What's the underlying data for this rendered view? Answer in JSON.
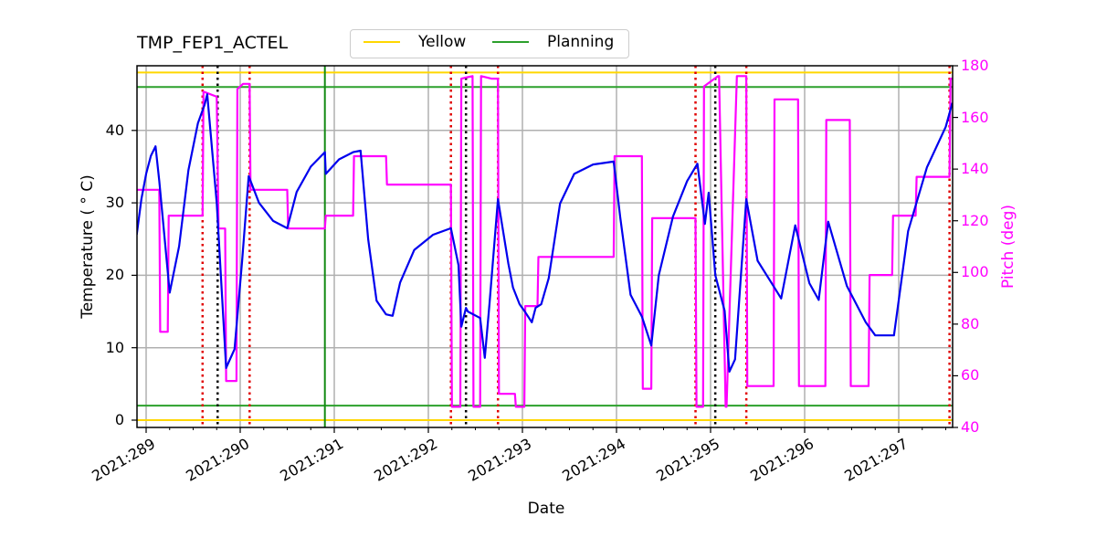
{
  "chart_data": {
    "type": "line",
    "title": "TMP_FEP1_ACTEL",
    "xlabel": "Date",
    "ylabel": "Temperature ($^\\circ$C)",
    "ylabel_display": "Temperature ( ° C)",
    "y2label": "Pitch (deg)",
    "xlim": [
      288.9,
      297.57
    ],
    "ylim": [
      -1,
      49
    ],
    "y2lim": [
      40,
      180
    ],
    "grid": true,
    "legend_position": "top-center (above axes)",
    "x_ticks": [
      "2021:289",
      "2021:290",
      "2021:291",
      "2021:292",
      "2021:293",
      "2021:294",
      "2021:295",
      "2021:296",
      "2021:297"
    ],
    "x_tick_values": [
      289,
      290,
      291,
      292,
      293,
      294,
      295,
      296,
      297
    ],
    "y_ticks": [
      0,
      10,
      20,
      30,
      40
    ],
    "y2_ticks": [
      40,
      60,
      80,
      100,
      120,
      140,
      160,
      180
    ],
    "legend": [
      {
        "label": "Yellow",
        "color": "#ffd700"
      },
      {
        "label": "Planning",
        "color": "#2ca02c"
      }
    ],
    "limit_lines": [
      {
        "name": "Yellow high",
        "value": 48,
        "color": "#ffd700"
      },
      {
        "name": "Planning high",
        "value": 46,
        "color": "#2ca02c"
      },
      {
        "name": "Planning low",
        "value": 2,
        "color": "#2ca02c"
      },
      {
        "name": "Yellow low",
        "value": 0,
        "color": "#ffd700"
      }
    ],
    "vertical_markers": [
      {
        "day": 289.6,
        "style": "red-dotted"
      },
      {
        "day": 289.76,
        "style": "black-dotted"
      },
      {
        "day": 290.1,
        "style": "red-dotted"
      },
      {
        "day": 290.9,
        "style": "green-solid"
      },
      {
        "day": 292.24,
        "style": "red-dotted"
      },
      {
        "day": 292.4,
        "style": "black-dotted"
      },
      {
        "day": 292.74,
        "style": "red-dotted"
      },
      {
        "day": 294.84,
        "style": "red-dotted"
      },
      {
        "day": 295.05,
        "style": "black-dotted"
      },
      {
        "day": 295.38,
        "style": "red-dotted"
      },
      {
        "day": 297.54,
        "style": "red-dotted"
      }
    ],
    "series": [
      {
        "name": "TMP_FEP1_ACTEL",
        "axis": "left",
        "color": "#0000ee",
        "x": [
          288.9,
          288.95,
          289.0,
          289.05,
          289.1,
          289.14,
          289.25,
          289.35,
          289.45,
          289.55,
          289.62,
          289.65,
          289.75,
          289.85,
          289.86,
          289.94,
          290.02,
          290.09,
          290.2,
          290.35,
          290.5,
          290.6,
          290.75,
          290.9,
          290.91,
          291.05,
          291.2,
          291.28,
          291.36,
          291.45,
          291.55,
          291.62,
          291.7,
          291.85,
          292.05,
          292.24,
          292.32,
          292.35,
          292.4,
          292.42,
          292.55,
          292.6,
          292.65,
          292.74,
          292.85,
          292.9,
          292.97,
          293.02,
          293.1,
          293.14,
          293.2,
          293.28,
          293.4,
          293.55,
          293.75,
          293.97,
          294.04,
          294.15,
          294.27,
          294.37,
          294.45,
          294.6,
          294.75,
          294.86,
          294.94,
          294.98,
          295.05,
          295.15,
          295.2,
          295.26,
          295.38,
          295.5,
          295.65,
          295.75,
          295.9,
          296.05,
          296.15,
          296.25,
          296.45,
          296.65,
          296.75,
          296.95,
          297.1,
          297.3,
          297.5,
          297.57
        ],
        "values": [
          25.6,
          30.5,
          34.0,
          36.5,
          37.8,
          33.0,
          17.6,
          24.0,
          34.5,
          41.0,
          43.5,
          45.0,
          30.0,
          7.2,
          7.5,
          9.8,
          22.0,
          33.7,
          30.0,
          27.5,
          26.5,
          31.5,
          35.0,
          37.0,
          34.0,
          36.0,
          37.0,
          37.2,
          25.0,
          16.5,
          14.6,
          14.4,
          19.0,
          23.5,
          25.6,
          26.5,
          21.4,
          12.9,
          15.5,
          15.0,
          14.1,
          8.6,
          16.0,
          30.5,
          21.6,
          18.3,
          16.0,
          15.1,
          13.5,
          15.5,
          16.0,
          19.6,
          29.9,
          34.0,
          35.3,
          35.7,
          28.0,
          17.3,
          14.3,
          10.3,
          20.0,
          28.1,
          33.0,
          35.4,
          27.1,
          31.4,
          20.0,
          15.1,
          6.7,
          8.4,
          30.5,
          22.0,
          18.9,
          16.8,
          26.9,
          18.9,
          16.6,
          27.4,
          18.5,
          13.5,
          11.7,
          11.7,
          26.1,
          34.9,
          40.5,
          43.8
        ]
      },
      {
        "name": "Pitch",
        "axis": "right",
        "color": "#ff00ff",
        "step": true,
        "x": [
          288.9,
          289.14,
          289.15,
          289.23,
          289.24,
          289.6,
          289.61,
          289.75,
          289.77,
          289.84,
          289.85,
          289.96,
          289.97,
          290.03,
          290.04,
          290.1,
          290.11,
          290.5,
          290.51,
          290.9,
          290.91,
          291.2,
          291.21,
          291.55,
          291.56,
          292.24,
          292.25,
          292.34,
          292.35,
          292.47,
          292.48,
          292.55,
          292.56,
          292.67,
          292.68,
          292.74,
          292.75,
          292.92,
          292.93,
          293.02,
          293.03,
          293.16,
          293.17,
          293.97,
          293.98,
          294.27,
          294.28,
          294.37,
          294.38,
          294.84,
          294.85,
          294.92,
          294.93,
          295.08,
          295.09,
          295.16,
          295.17,
          295.28,
          295.29,
          295.38,
          295.39,
          295.67,
          295.68,
          295.93,
          295.94,
          296.22,
          296.23,
          296.48,
          296.49,
          296.68,
          296.69,
          296.93,
          296.94,
          297.18,
          297.19,
          297.54,
          297.55,
          297.57
        ],
        "values": [
          132,
          132,
          77,
          77,
          122,
          122,
          170,
          168,
          117,
          117,
          58,
          58,
          171,
          173,
          173,
          173,
          132,
          132,
          117,
          117,
          122,
          122,
          145,
          145,
          134,
          134,
          48,
          48,
          175,
          176,
          48,
          48,
          176,
          175,
          175,
          175,
          53,
          53,
          48,
          48,
          87,
          87,
          106,
          106,
          145,
          145,
          55,
          55,
          121,
          121,
          48,
          48,
          172,
          176,
          176,
          48,
          48,
          176,
          176,
          176,
          56,
          56,
          167,
          167,
          56,
          56,
          159,
          159,
          56,
          56,
          99,
          99,
          122,
          122,
          137,
          137,
          175,
          175
        ]
      }
    ]
  }
}
